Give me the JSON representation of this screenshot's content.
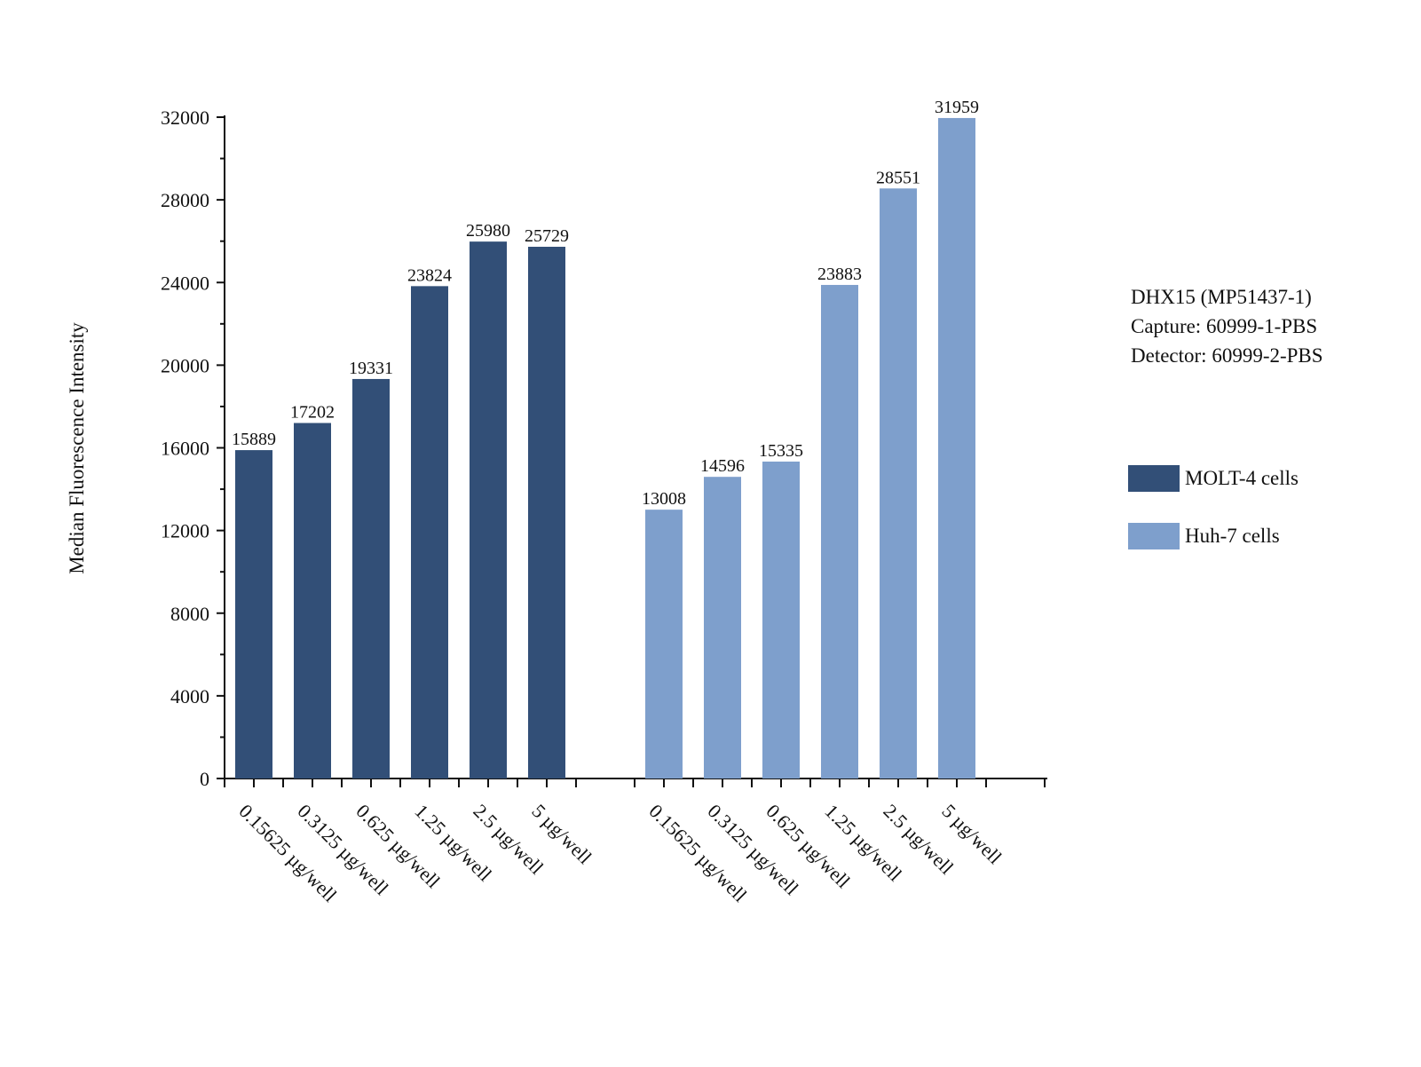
{
  "chart_data": {
    "type": "bar",
    "ylabel": "Median Fluorescence Intensity",
    "ylim": [
      0,
      32000
    ],
    "yticks": [
      0,
      4000,
      8000,
      12000,
      16000,
      20000,
      24000,
      28000,
      32000
    ],
    "grid": false,
    "legend_position": "right",
    "series": [
      {
        "name": "MOLT-4 cells",
        "color": "#324f77",
        "categories": [
          "0.15625 µg/well",
          "0.3125 µg/well",
          "0.625 µg/well",
          "1.25 µg/well",
          "2.5 µg/well",
          "5 µg/well"
        ],
        "values": [
          15889,
          17202,
          19331,
          23824,
          25980,
          25729
        ]
      },
      {
        "name": "Huh-7 cells",
        "color": "#7e9fcc",
        "categories": [
          "0.15625 µg/well",
          "0.3125 µg/well",
          "0.625 µg/well",
          "1.25 µg/well",
          "2.5 µg/well",
          "5 µg/well"
        ],
        "values": [
          13008,
          14596,
          15335,
          23883,
          28551,
          31959
        ]
      }
    ]
  },
  "annotation": {
    "lines": [
      "DHX15 (MP51437-1)",
      "Capture: 60999-1-PBS",
      "Detector: 60999-2-PBS"
    ]
  }
}
